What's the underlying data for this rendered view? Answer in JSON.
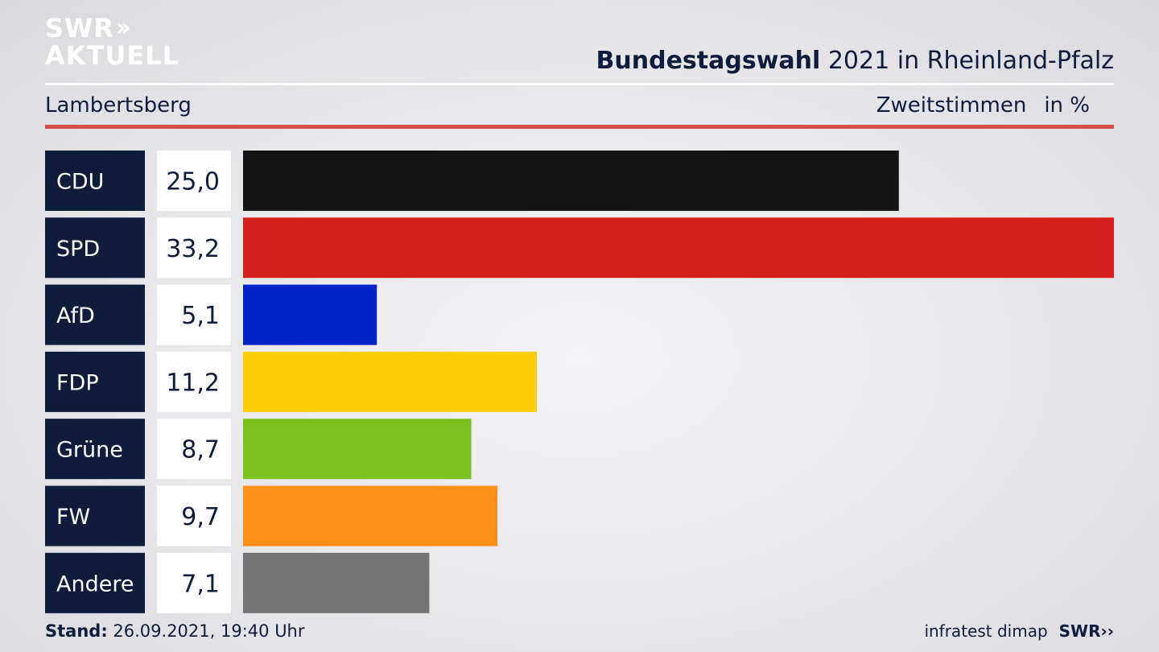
{
  "logo": {
    "line1": "SWR",
    "line2": "AKTUELL"
  },
  "header": {
    "title_bold": "Bundestagswahl",
    "title_rest": "2021 in Rheinland-Pfalz",
    "location": "Lambertsberg",
    "measure": "Zweitstimmen",
    "unit": "in %"
  },
  "chart_data": {
    "type": "bar",
    "orientation": "horizontal",
    "categories": [
      "CDU",
      "SPD",
      "AfD",
      "FDP",
      "Grüne",
      "FW",
      "Andere"
    ],
    "values": [
      25.0,
      33.2,
      5.1,
      11.2,
      8.7,
      9.7,
      7.1
    ],
    "value_labels": [
      "25,0",
      "33,2",
      "5,1",
      "11,2",
      "8,7",
      "9,7",
      "7,1"
    ],
    "colors": [
      "#141414",
      "#d81f20",
      "#0022c8",
      "#ffcc0a",
      "#7ac01f",
      "#ff8f17",
      "#737373"
    ],
    "title": "",
    "xlabel": "",
    "ylabel": "",
    "xlim": [
      0,
      33.2
    ],
    "grid": false,
    "legend": "none"
  },
  "footer": {
    "stand_label": "Stand:",
    "stand_value": "26.09.2021, 19:40 Uhr",
    "source": "infratest dimap",
    "brand": "SWR"
  }
}
